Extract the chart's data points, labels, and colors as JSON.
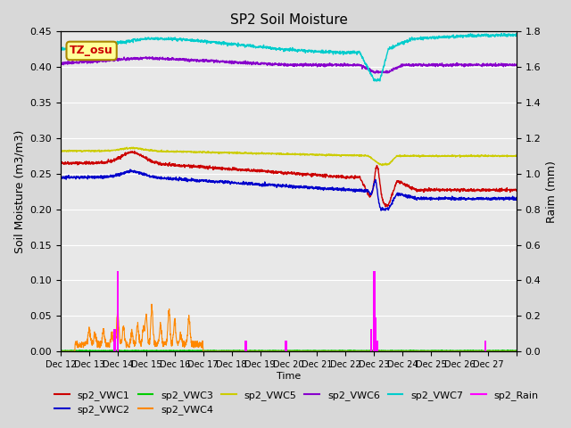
{
  "title": "SP2 Soil Moisture",
  "xlabel": "Time",
  "ylabel_left": "Soil Moisture (m3/m3)",
  "ylabel_right": "Raim (mm)",
  "ylim_left": [
    0.0,
    0.45
  ],
  "ylim_right": [
    0.0,
    1.8
  ],
  "xlim": [
    0,
    16
  ],
  "background_color": "#d3d3d3",
  "plot_bg_color": "#e8e8e8",
  "timezone_label": "TZ_osu",
  "tz_box_color": "#ffff99",
  "tz_text_color": "#cc0000",
  "xtick_labels": [
    "Dec 12",
    "Dec 13",
    "Dec 14",
    "Dec 15",
    "Dec 16",
    "Dec 17",
    "Dec 18",
    "Dec 19",
    "Dec 20",
    "Dec 21",
    "Dec 22",
    "Dec 23",
    "Dec 24",
    "Dec 25",
    "Dec 26",
    "Dec 27"
  ],
  "series_colors": {
    "sp2_VWC1": "#cc0000",
    "sp2_VWC2": "#0000cc",
    "sp2_VWC3": "#00cc00",
    "sp2_VWC4": "#ff8800",
    "sp2_VWC5": "#cccc00",
    "sp2_VWC6": "#8800cc",
    "sp2_VWC7": "#00cccc",
    "sp2_Rain": "#ff00ff"
  },
  "legend_entries": [
    "sp2_VWC1",
    "sp2_VWC2",
    "sp2_VWC3",
    "sp2_VWC4",
    "sp2_VWC5",
    "sp2_VWC6",
    "sp2_VWC7",
    "sp2_Rain"
  ]
}
